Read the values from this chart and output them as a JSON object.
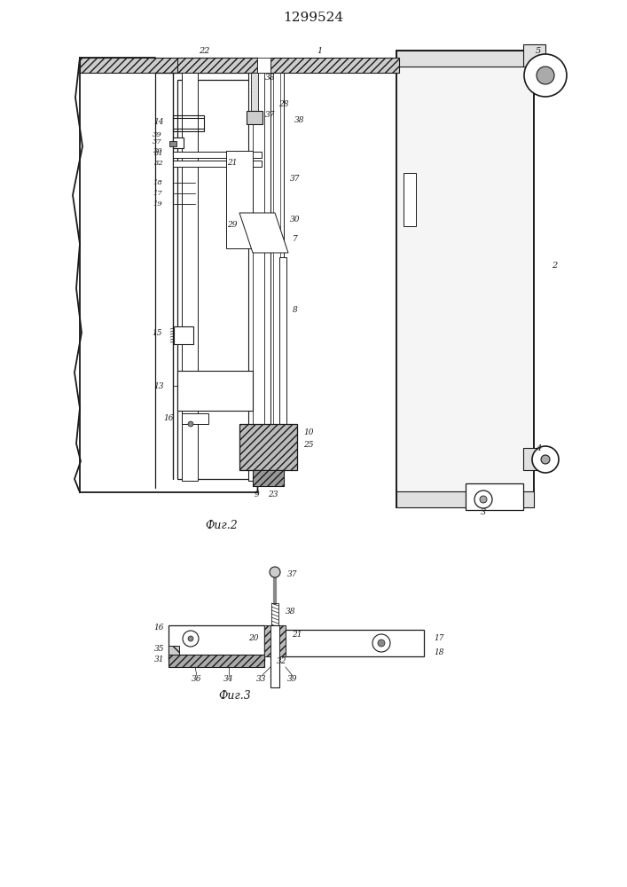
{
  "title": "1299524",
  "fig_bg": "#ffffff",
  "lc": "#1a1a1a",
  "fig2_label": "Фиг.2",
  "fig3_label": "Фиг.3"
}
